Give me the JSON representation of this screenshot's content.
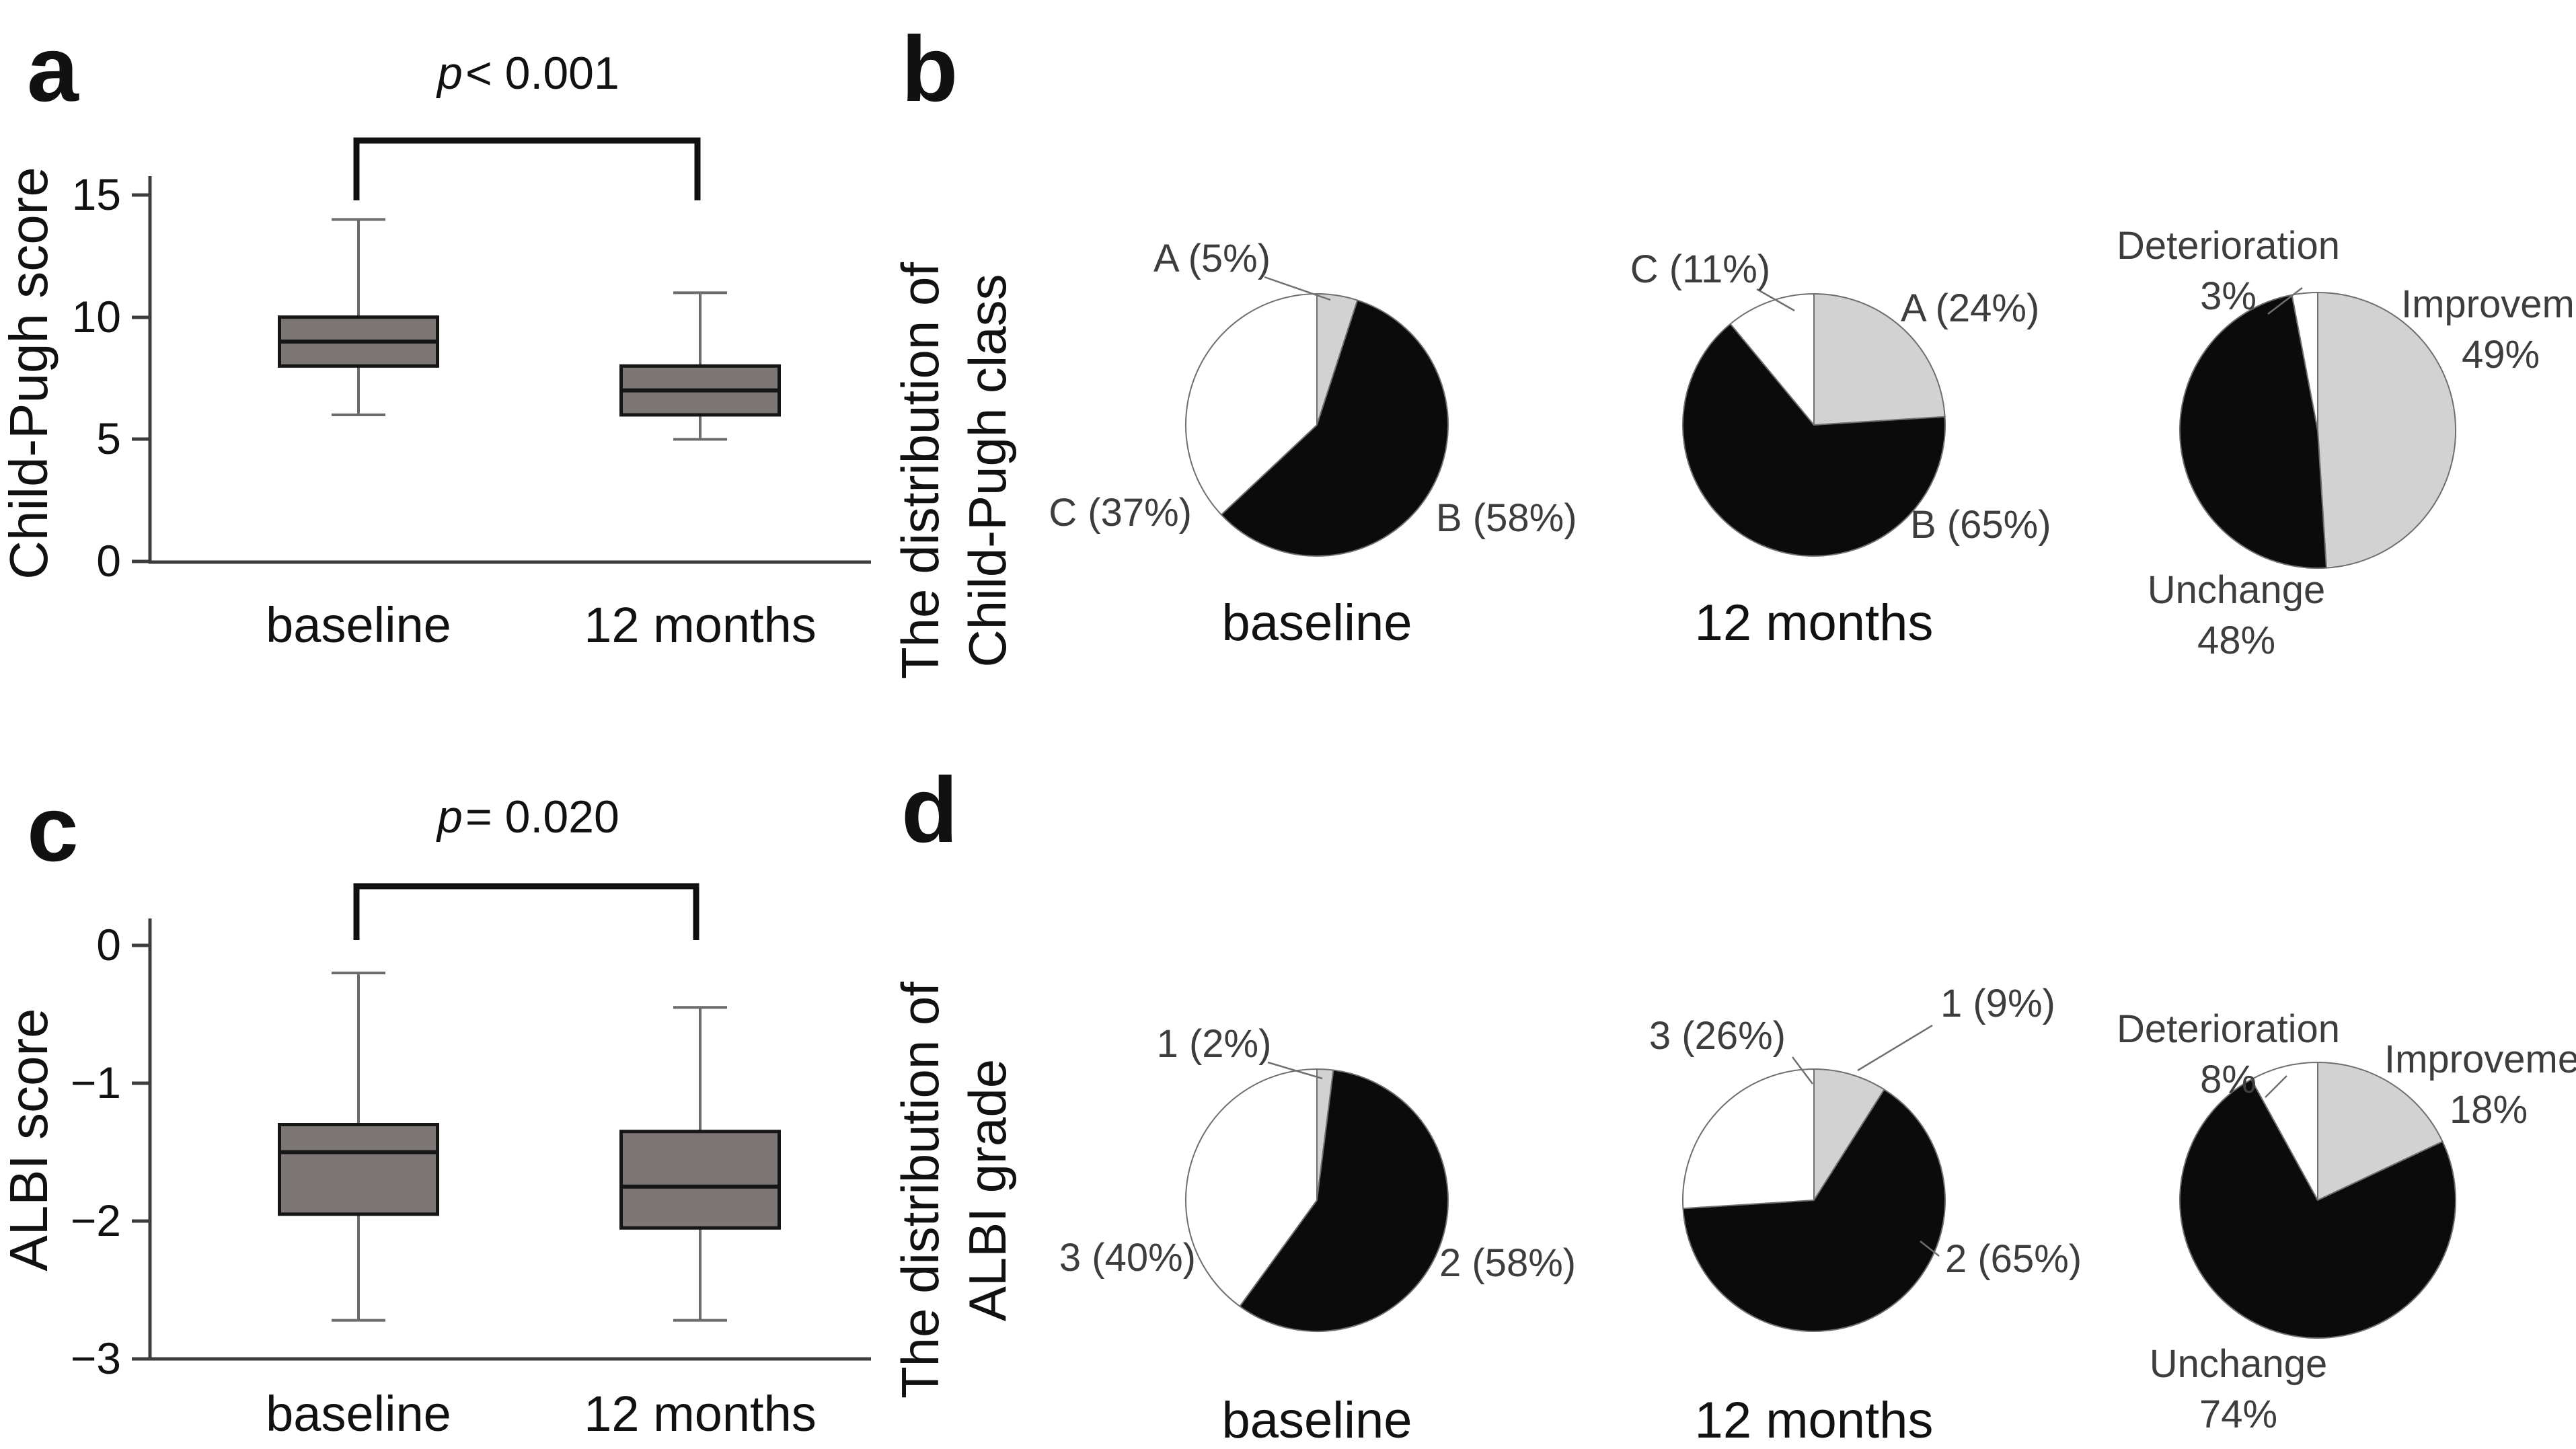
{
  "figure": {
    "panel_letters": {
      "a": "a",
      "b": "b",
      "c": "c",
      "d": "d"
    }
  },
  "chart_data": [
    {
      "type": "box",
      "panel": "a",
      "ylabel": "Child-Pugh score",
      "p_symbol": "p",
      "p_value": "< 0.001",
      "categories": [
        "baseline",
        "12 months"
      ],
      "ytick_labels": [
        "15",
        "10",
        "5",
        "0"
      ],
      "ytick_values": [
        15,
        10,
        5,
        0
      ],
      "ylim": [
        0,
        16
      ],
      "grid": false,
      "series": [
        {
          "name": "baseline",
          "whisker_low": 6,
          "q1": 8,
          "median": 9,
          "q3": 10,
          "whisker_high": 14
        },
        {
          "name": "12 months",
          "whisker_low": 5,
          "q1": 6,
          "median": 7,
          "q3": 8,
          "whisker_high": 11
        }
      ],
      "box_fill_color": "#7c7774"
    },
    {
      "type": "pie",
      "panel": "b",
      "group_title_lines": [
        "The distribution of",
        "Child-Pugh class"
      ],
      "colors": {
        "gray": "#d2d2d2",
        "black": "#0b0b0b",
        "white": "#ffffff"
      },
      "pies": [
        {
          "caption": "baseline",
          "slices": [
            {
              "label": "A (5%)",
              "value": 5,
              "color": "gray"
            },
            {
              "label": "B (58%)",
              "value": 58,
              "color": "black"
            },
            {
              "label": "C (37%)",
              "value": 37,
              "color": "white"
            }
          ]
        },
        {
          "caption": "12 months",
          "slices": [
            {
              "label": "A (24%)",
              "value": 24,
              "color": "gray"
            },
            {
              "label": "B (65%)",
              "value": 65,
              "color": "black"
            },
            {
              "label": "C (11%)",
              "value": 11,
              "color": "white"
            }
          ]
        },
        {
          "caption": "",
          "slices": [
            {
              "label_lines": [
                "Improvement",
                "49%"
              ],
              "value": 49,
              "color": "gray"
            },
            {
              "label_lines": [
                "Unchange",
                "48%"
              ],
              "value": 48,
              "color": "black"
            },
            {
              "label_lines": [
                "Deterioration",
                "3%"
              ],
              "value": 3,
              "color": "white"
            }
          ]
        }
      ]
    },
    {
      "type": "box",
      "panel": "c",
      "ylabel": "ALBI score",
      "p_symbol": "p",
      "p_value": "= 0.020",
      "categories": [
        "baseline",
        "12 months"
      ],
      "ytick_labels": [
        "0",
        "−1",
        "−2",
        "−3"
      ],
      "ytick_values": [
        0,
        -1,
        -2,
        -3
      ],
      "ylim": [
        -3,
        0.3
      ],
      "grid": false,
      "series": [
        {
          "name": "baseline",
          "whisker_low": -2.72,
          "q1": -1.95,
          "median": -1.5,
          "q3": -1.3,
          "whisker_high": -0.2
        },
        {
          "name": "12 months",
          "whisker_low": -2.72,
          "q1": -2.05,
          "median": -1.75,
          "q3": -1.35,
          "whisker_high": -0.45
        }
      ],
      "box_fill_color": "#7c7774"
    },
    {
      "type": "pie",
      "panel": "d",
      "group_title_lines": [
        "The distribution of",
        "ALBI grade"
      ],
      "colors": {
        "gray": "#d2d2d2",
        "black": "#0b0b0b",
        "white": "#ffffff"
      },
      "pies": [
        {
          "caption": "baseline",
          "slices": [
            {
              "label": "1 (2%)",
              "value": 2,
              "color": "gray"
            },
            {
              "label": "2 (58%)",
              "value": 58,
              "color": "black"
            },
            {
              "label": "3 (40%)",
              "value": 40,
              "color": "white"
            }
          ]
        },
        {
          "caption": "12 months",
          "slices": [
            {
              "label": "1 (9%)",
              "value": 9,
              "color": "gray"
            },
            {
              "label": "2 (65%)",
              "value": 65,
              "color": "black"
            },
            {
              "label": "3 (26%)",
              "value": 26,
              "color": "white"
            }
          ]
        },
        {
          "caption": "",
          "slices": [
            {
              "label_lines": [
                "Improvement",
                "18%"
              ],
              "value": 18,
              "color": "gray"
            },
            {
              "label_lines": [
                "Unchange",
                "74%"
              ],
              "value": 74,
              "color": "black"
            },
            {
              "label_lines": [
                "Deterioration",
                "8%"
              ],
              "value": 8,
              "color": "white"
            }
          ]
        }
      ]
    }
  ]
}
